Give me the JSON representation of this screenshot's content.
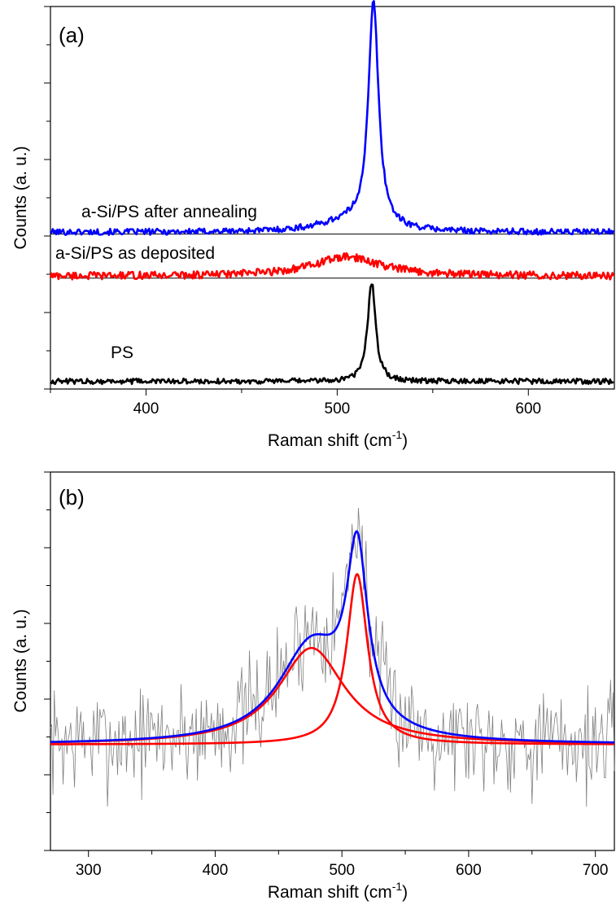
{
  "chart_data": [
    {
      "panel": "(a)",
      "type": "line",
      "xlabel": "Raman shift (cm",
      "xlabel_sup": "-1",
      "xlabel_tail": ")",
      "ylabel": "Counts (a. u.)",
      "xlim": [
        350,
        645
      ],
      "ylim": [
        0,
        10
      ],
      "x_ticks": [
        400,
        500,
        600
      ],
      "annotations": [
        "a-Si/PS after annealing",
        "a-Si/PS as deposited",
        "PS"
      ],
      "series": [
        {
          "color": "#0000ff",
          "kind": "c-Si peak",
          "baseline": 4.1,
          "noise": 0.08,
          "peak_center": 519,
          "peak_height": 5.9,
          "peak_width": 3.2,
          "shoulder_center": 505,
          "shoulder_height": 0.25,
          "shoulder_width": 18
        },
        {
          "color": "#ff0000",
          "kind": "broad a-Si band",
          "baseline": 2.95,
          "noise": 0.1,
          "peak_center": 505,
          "peak_height": 0.5,
          "peak_width": 22,
          "shoulder_center": 0,
          "shoulder_height": 0,
          "shoulder_width": 1
        },
        {
          "color": "#000000",
          "kind": "c-Si peak",
          "baseline": 0.2,
          "noise": 0.07,
          "peak_center": 518,
          "peak_height": 2.6,
          "peak_width": 2.5,
          "shoulder_center": 0,
          "shoulder_height": 0,
          "shoulder_width": 1
        }
      ],
      "reference_lines": [
        {
          "y": 4.05,
          "x_from": 350,
          "x_to": 645
        },
        {
          "y": 2.9,
          "x_from": 355,
          "x_to": 632
        }
      ]
    },
    {
      "panel": "(b)",
      "type": "line",
      "xlabel": "Raman shift (cm",
      "xlabel_sup": "-1",
      "xlabel_tail": ")",
      "ylabel": "Counts (a. u.)",
      "xlim": [
        270,
        715
      ],
      "ylim": [
        0,
        10
      ],
      "x_ticks": [
        300,
        400,
        500,
        600,
        700
      ],
      "raw_data": {
        "color": "#808080",
        "baseline": 2.8,
        "noise": 1.1,
        "seed": 7
      },
      "fit_components": [
        {
          "color": "#ff0000",
          "center": 476,
          "amplitude": 2.55,
          "width": 32,
          "baseline": 2.8
        },
        {
          "color": "#ff0000",
          "center": 512,
          "amplitude": 4.5,
          "width": 10,
          "baseline": 2.8
        }
      ],
      "fit_sum": {
        "color": "#0000ff",
        "baseline": 2.8
      }
    }
  ]
}
